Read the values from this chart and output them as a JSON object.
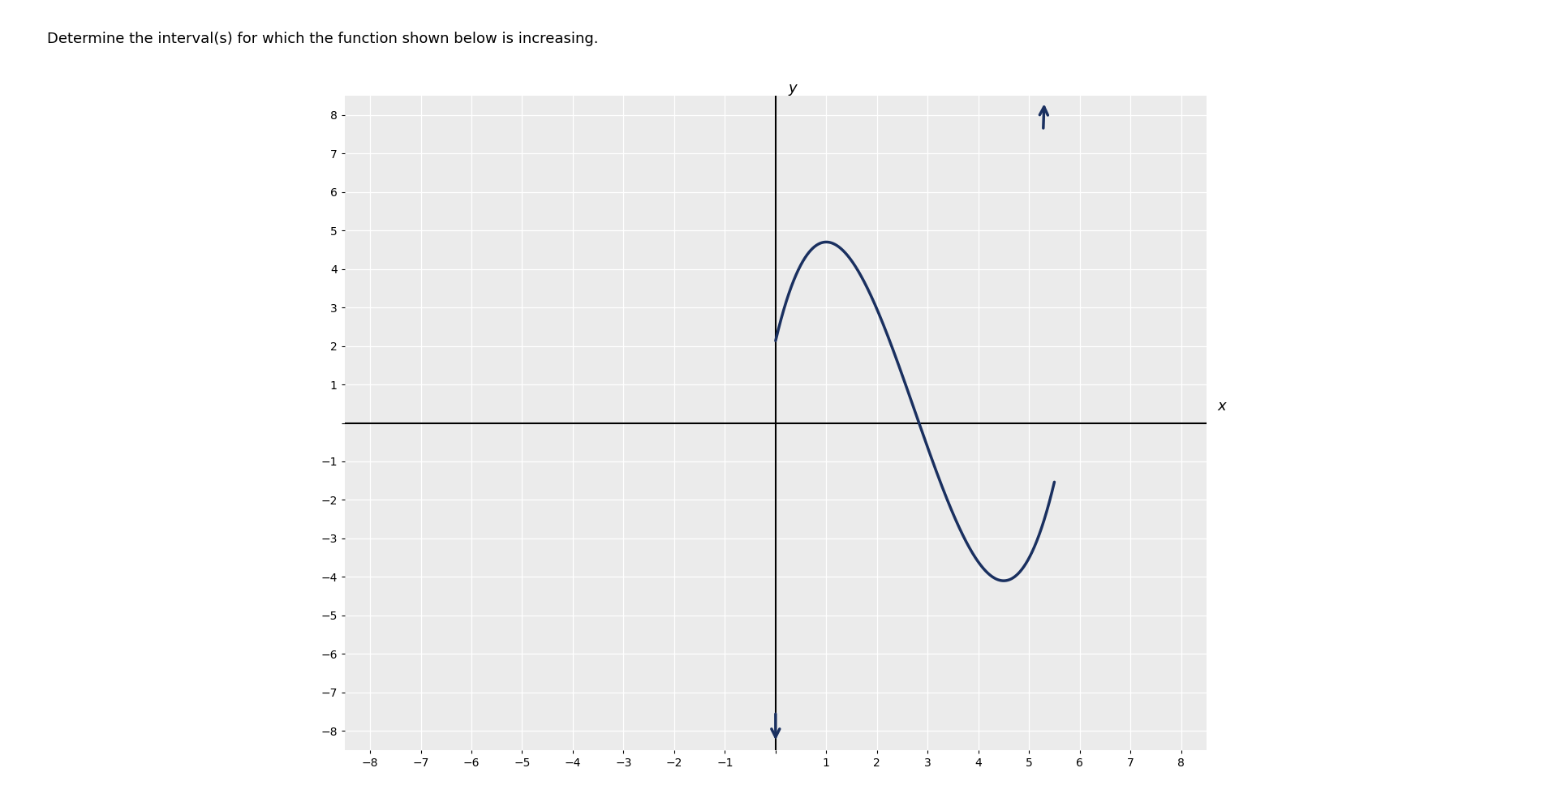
{
  "title": "Determine the interval(s) for which the function shown below is increasing.",
  "title_fontsize": 13,
  "xlim": [
    -8.5,
    8.5
  ],
  "ylim": [
    -8.5,
    8.5
  ],
  "xticks": [
    -8,
    -7,
    -6,
    -5,
    -4,
    -3,
    -2,
    -1,
    0,
    1,
    2,
    3,
    4,
    5,
    6,
    7,
    8
  ],
  "yticks": [
    -8,
    -7,
    -6,
    -5,
    -4,
    -3,
    -2,
    -1,
    0,
    1,
    2,
    3,
    4,
    5,
    6,
    7,
    8
  ],
  "curve_color": "#1a3060",
  "curve_linewidth": 2.5,
  "background_color": "#ffffff",
  "plot_bg_color": "#ebebeb",
  "grid_color": "#ffffff",
  "axis_color": "#000000",
  "xlabel": "x",
  "ylabel": "y",
  "local_max_x": 1.0,
  "local_max_y": 4.7,
  "local_min_x": 4.5,
  "local_min_y": -4.1,
  "fig_width": 19.31,
  "fig_height": 9.84,
  "dpi": 100
}
